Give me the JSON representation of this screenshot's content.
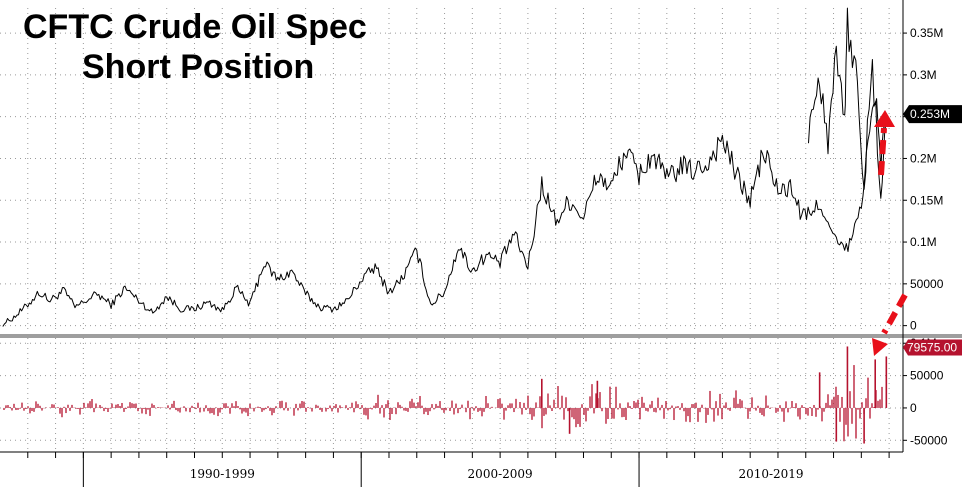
{
  "title_lines": [
    "CFTC Crude Oil Spec",
    "Short Position"
  ],
  "colors": {
    "top_line": "#000000",
    "bottom_bars": "#b5122e",
    "arrow": "#e8101a",
    "top_label_bg": "#000000",
    "bottom_label_bg": "#b5122e",
    "grid": "#9a9a9a",
    "separator": "#9e9e9e"
  },
  "x_axis": {
    "labels": [
      "1990-1999",
      "2000-2009",
      "2010-2019"
    ],
    "ranges": [
      [
        1990,
        2000
      ],
      [
        2000,
        2010
      ],
      [
        2010,
        2020
      ]
    ]
  },
  "chart_data": [
    {
      "type": "line",
      "title": "CFTC Crude Oil Spec Short Position",
      "xlabel": "",
      "ylabel": "",
      "xlim": [
        1986.5,
        2019.0
      ],
      "ylim": [
        -10000,
        380000
      ],
      "y_ticks": [
        0,
        50000,
        100000,
        150000,
        200000,
        250000,
        300000,
        350000
      ],
      "y_tick_labels": [
        "0",
        "50000",
        "0.1M",
        "0.15M",
        "0.2M",
        "0.25M",
        "0.3M",
        "0.35M"
      ],
      "grid": true,
      "current_value_label": "0.253M",
      "series": [
        {
          "x": [
            1986.6,
            1987.0,
            1987.5,
            1987.9,
            1988.3,
            1988.8,
            1989.2,
            1989.6,
            1990.0,
            1990.5,
            1991.0,
            1991.5,
            1992.0,
            1992.5,
            1993.0,
            1993.5,
            1994.0,
            1994.5,
            1995.0,
            1995.5,
            1996.0,
            1996.5,
            1997.0,
            1997.5,
            1998.0,
            1998.5,
            1999.0,
            1999.5,
            2000.0,
            2000.5,
            2001.0,
            2001.5,
            2002.0,
            2002.5,
            2003.0,
            2003.5,
            2004.0,
            2004.5,
            2005.0,
            2005.5,
            2006.0,
            2006.5,
            2007.0,
            2007.5,
            2008.0,
            2008.5,
            2009.0,
            2009.5,
            2010.0,
            2010.5,
            2011.0,
            2011.5,
            2012.0,
            2012.5,
            2013.0,
            2013.5,
            2014.0,
            2014.5,
            2015.0,
            2015.3,
            2015.7,
            2016.0,
            2016.3,
            2016.6,
            2016.9,
            2017.2,
            2017.5,
            2017.8,
            2018.0,
            2018.2,
            2018.4
          ],
          "y": [
            2000,
            10000,
            25000,
            40000,
            30000,
            42000,
            22000,
            30000,
            38000,
            25000,
            45000,
            30000,
            15000,
            35000,
            20000,
            20000,
            28000,
            18000,
            45000,
            25000,
            75000,
            55000,
            65000,
            38000,
            22000,
            20000,
            30000,
            55000,
            70000,
            40000,
            58000,
            90000,
            25000,
            40000,
            95000,
            65000,
            85000,
            75000,
            110000,
            70000,
            170000,
            125000,
            150000,
            130000,
            180000,
            165000,
            210000,
            180000,
            205000,
            175000,
            190000,
            185000,
            195000,
            225000,
            180000,
            150000,
            210000,
            160000,
            165000,
            135000,
            130000,
            150000,
            120000,
            100000,
            90000,
            105000,
            150000,
            230000,
            275000,
            200000,
            250000
          ]
        },
        {
          "x": [
            2015.6,
            2016.0,
            2016.3,
            2016.6,
            2016.9,
            2017.0,
            2017.3,
            2017.6,
            2017.9,
            2018.2,
            2018.4
          ],
          "y": [
            240000,
            300000,
            225000,
            335000,
            255000,
            360000,
            305000,
            175000,
            300000,
            165000,
            253000
          ]
        }
      ]
    },
    {
      "type": "bar",
      "title": "",
      "xlabel": "",
      "ylabel": "",
      "xlim": [
        1986.5,
        2019.0
      ],
      "ylim": [
        -65000,
        105000
      ],
      "y_ticks": [
        -50000,
        0,
        50000,
        100000
      ],
      "y_tick_labels": [
        "-50000",
        "0",
        "50000",
        "0.1M"
      ],
      "grid": true,
      "current_value_label": "79575.00",
      "x": [
        1987.0,
        1988.0,
        1989.0,
        1990.0,
        1991.0,
        1992.0,
        1993.0,
        1994.0,
        1995.0,
        1996.0,
        1997.0,
        1998.0,
        1999.0,
        2000.0,
        2001.0,
        2002.0,
        2003.0,
        2004.0,
        2005.0,
        2006.0,
        2007.0,
        2008.0,
        2009.0,
        2010.0,
        2011.0,
        2012.0,
        2013.0,
        2014.0,
        2015.0,
        2016.0,
        2016.6,
        2017.0,
        2017.6,
        2018.0,
        2018.4
      ],
      "values": [
        12000,
        -14000,
        15000,
        -16000,
        16000,
        -14000,
        15000,
        -15000,
        18000,
        -20000,
        17000,
        -18000,
        16000,
        25000,
        -22000,
        20000,
        -25000,
        22000,
        -25000,
        45000,
        -40000,
        42000,
        -35000,
        30000,
        -32000,
        35000,
        -38000,
        30000,
        -28000,
        55000,
        -52000,
        95000,
        -55000,
        75000,
        79575
      ]
    }
  ]
}
